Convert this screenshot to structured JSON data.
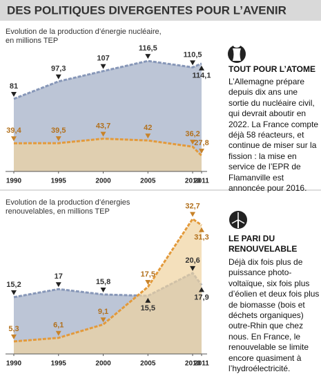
{
  "header": {
    "title": "DES POLITIQUES DIVERGENTES POUR L’AVENIR"
  },
  "chart_data": [
    {
      "type": "area",
      "title": "Evolution de la production d’énergie nucléaire, en millions TEP",
      "x": [
        1990,
        1995,
        2000,
        2005,
        2010,
        2011
      ],
      "xlim": [
        1990,
        2011
      ],
      "xticks": [
        1990,
        1995,
        2000,
        2005,
        2010,
        2011
      ],
      "ylim": [
        13,
        125
      ],
      "series": [
        {
          "color": "#8797b8",
          "values": [
            81,
            97.3,
            107,
            116.5,
            110.5,
            114.1
          ],
          "value_labels": [
            "81",
            "97,3",
            "107",
            "116,5",
            "110,5",
            "114,1"
          ]
        },
        {
          "color": "#e39a3b",
          "values": [
            39.4,
            39.5,
            43.7,
            42,
            36.2,
            27.8
          ],
          "value_labels": [
            "39,4",
            "39,5",
            "43,7",
            "42",
            "36,2",
            "27,8"
          ]
        }
      ]
    },
    {
      "type": "area",
      "title": "Evolution de la production d’énergies renouvelables, en millions TEP",
      "x": [
        1990,
        1995,
        2000,
        2005,
        2010,
        2011
      ],
      "xlim": [
        1990,
        2011
      ],
      "xticks": [
        1990,
        1995,
        2000,
        2005,
        2010,
        2011
      ],
      "ylim": [
        2.5,
        34.5
      ],
      "series": [
        {
          "color": "#8797b8",
          "values": [
            15.2,
            17,
            15.8,
            15.5,
            20.6,
            17.9
          ],
          "value_labels": [
            "15,2",
            "17",
            "15,8",
            "15,5",
            "20,6",
            "17,9"
          ]
        },
        {
          "color": "#e39a3b",
          "values": [
            5.3,
            6.1,
            9.1,
            17.5,
            32.7,
            31.3
          ],
          "value_labels": [
            "5,3",
            "6,1",
            "9,1",
            "17,5",
            "32,7",
            "31,3"
          ]
        }
      ]
    }
  ],
  "sidebar": [
    {
      "heading": "TOUT POUR L’ATOME",
      "text": "L’Allemagne prépare depuis dix ans une sortie du nucléaire civil, qui devrait aboutir en 2022. La France compte déjà 58 réacteurs, et continue de miser sur la fission : la mise en service de l’EPR de Flamanville est annoncée pour 2016."
    },
    {
      "heading": "LE PARI DU RENOUVELABLE",
      "text": "Déjà dix fois plus de puissance photo­voltaïque, six fois plus d’éolien et deux fois plus de biomasse (bois et déchets organiques) outre-Rhin que chez nous. En France, le renouvelable se limite encore quasiment à l’hydroélectricité."
    }
  ]
}
